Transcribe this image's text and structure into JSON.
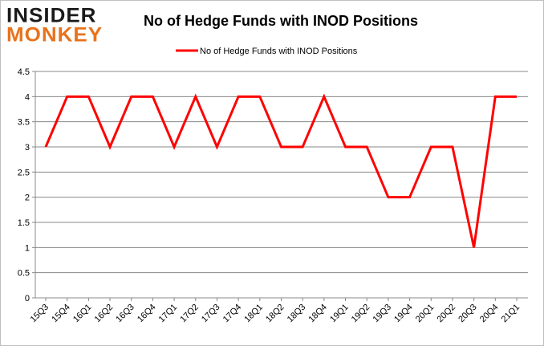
{
  "logo": {
    "line1": "INSIDER",
    "line2": "MONKEY"
  },
  "chart_data": {
    "type": "line",
    "title": "No of Hedge Funds with INOD Positions",
    "xlabel": "",
    "ylabel": "",
    "ylim": [
      0,
      4.5
    ],
    "ytick_step": 0.5,
    "y_tick_labels": [
      "0",
      "0.5",
      "1",
      "1.5",
      "2",
      "2.5",
      "3",
      "3.5",
      "4",
      "4.5"
    ],
    "grid": true,
    "legend_position": "top-center",
    "categories": [
      "15Q3",
      "15Q4",
      "16Q1",
      "16Q2",
      "16Q3",
      "16Q4",
      "17Q1",
      "17Q2",
      "17Q3",
      "17Q4",
      "18Q1",
      "18Q2",
      "18Q3",
      "18Q4",
      "19Q1",
      "19Q2",
      "19Q3",
      "19Q4",
      "20Q1",
      "20Q2",
      "20Q3",
      "20Q4",
      "21Q1"
    ],
    "series": [
      {
        "name": "No of Hedge Funds with INOD Positions",
        "color": "#ff0000",
        "values": [
          3,
          4,
          4,
          3,
          4,
          4,
          3,
          4,
          3,
          4,
          4,
          3,
          3,
          4,
          3,
          3,
          2,
          2,
          3,
          3,
          1,
          4,
          4
        ]
      }
    ]
  }
}
